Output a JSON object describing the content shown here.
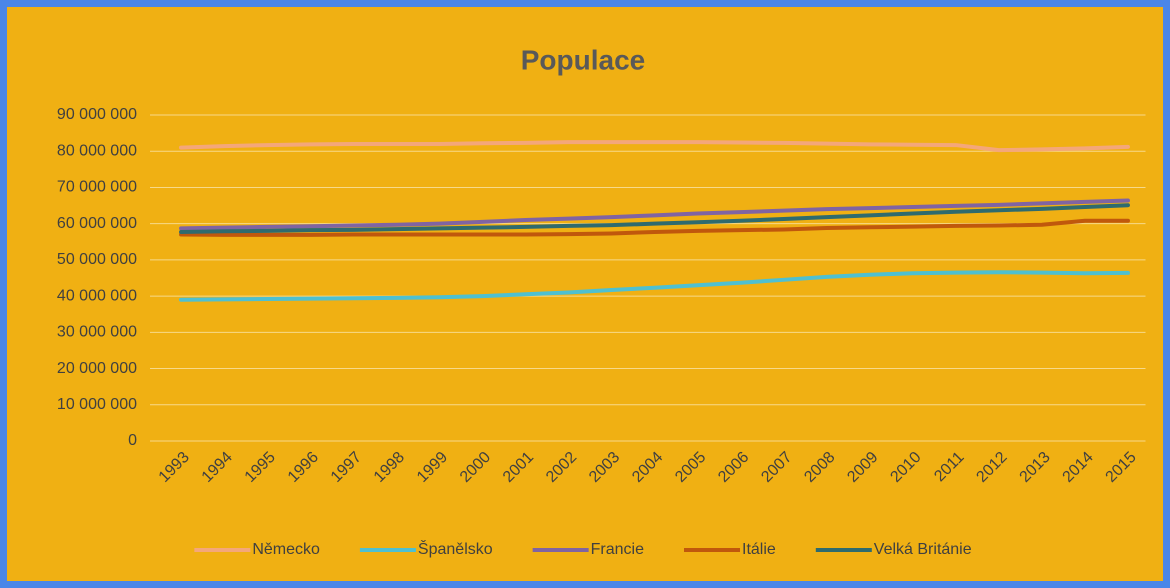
{
  "chart_data": {
    "type": "line",
    "title": "Populace",
    "categories": [
      "1993",
      "1994",
      "1995",
      "1996",
      "1997",
      "1998",
      "1999",
      "2000",
      "2001",
      "2002",
      "2003",
      "2004",
      "2005",
      "2006",
      "2007",
      "2008",
      "2009",
      "2010",
      "2011",
      "2012",
      "2013",
      "2014",
      "2015"
    ],
    "series": [
      {
        "name": "Německo",
        "color": "#f4a77a",
        "values": [
          81000000,
          81400000,
          81700000,
          81900000,
          82000000,
          82000000,
          82000000,
          82200000,
          82300000,
          82500000,
          82500000,
          82500000,
          82500000,
          82400000,
          82300000,
          82100000,
          81900000,
          81800000,
          81700000,
          80300000,
          80500000,
          80800000,
          81200000
        ]
      },
      {
        "name": "Španělsko",
        "color": "#4fc0d0",
        "values": [
          39000000,
          39100000,
          39200000,
          39300000,
          39400000,
          39500000,
          39700000,
          40000000,
          40500000,
          41000000,
          41700000,
          42300000,
          43000000,
          43700000,
          44500000,
          45300000,
          45900000,
          46300000,
          46500000,
          46600000,
          46500000,
          46300000,
          46400000
        ]
      },
      {
        "name": "Francie",
        "color": "#8064a2",
        "values": [
          58700000,
          58900000,
          59100000,
          59300000,
          59500000,
          59700000,
          60000000,
          60500000,
          61000000,
          61400000,
          61800000,
          62300000,
          62800000,
          63200000,
          63600000,
          64000000,
          64300000,
          64600000,
          64900000,
          65200000,
          65600000,
          66000000,
          66400000
        ]
      },
      {
        "name": "Itálie",
        "color": "#c0580c",
        "values": [
          57000000,
          56900000,
          56900000,
          56900000,
          57000000,
          57000000,
          57000000,
          57000000,
          57000000,
          57100000,
          57300000,
          57700000,
          58000000,
          58200000,
          58400000,
          58800000,
          59000000,
          59200000,
          59400000,
          59500000,
          59700000,
          60800000,
          60800000
        ]
      },
      {
        "name": "Velká Británie",
        "color": "#2f6b6e",
        "values": [
          57700000,
          57900000,
          58000000,
          58200000,
          58300000,
          58500000,
          58700000,
          58900000,
          59100000,
          59400000,
          59600000,
          60000000,
          60400000,
          60800000,
          61300000,
          61800000,
          62300000,
          62800000,
          63300000,
          63700000,
          64100000,
          64600000,
          65100000
        ]
      }
    ],
    "ylim": [
      0,
      90000000
    ],
    "yticks": [
      0,
      {
        "value": 10000000,
        "label": "10 000 000"
      },
      {
        "value": 20000000,
        "label": "20 000 000"
      },
      {
        "value": 30000000,
        "label": "30 000 000"
      },
      {
        "value": 40000000,
        "label": "40 000 000"
      },
      {
        "value": 50000000,
        "label": "50 000 000"
      },
      {
        "value": 60000000,
        "label": "60 000 000"
      },
      {
        "value": 70000000,
        "label": "70 000 000"
      },
      {
        "value": 80000000,
        "label": "80 000 000"
      },
      {
        "value": 90000000,
        "label": "90 000 000"
      }
    ],
    "grid": true,
    "legend": "bottom"
  }
}
